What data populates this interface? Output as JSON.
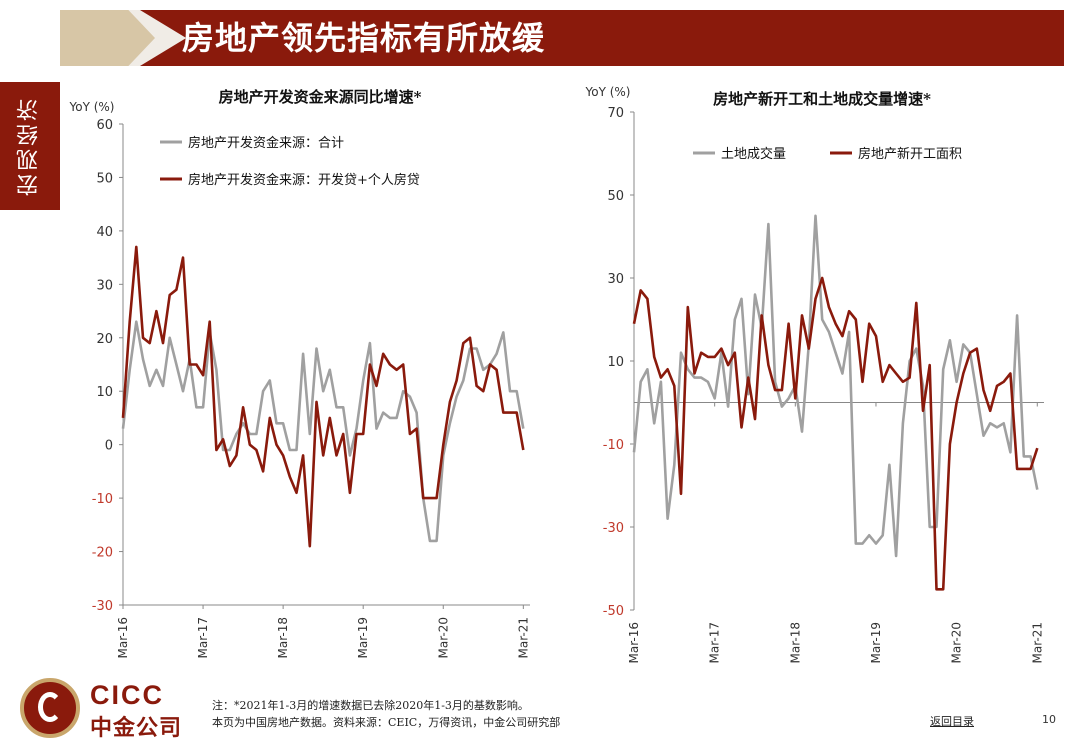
{
  "header": {
    "title": "房地产领先指标有所放缓"
  },
  "sidebar": {
    "section": "宏观经济"
  },
  "colors": {
    "brand_red": "#8a1a0c",
    "gray_line": "#a0a0a0",
    "gold": "#c9a66b",
    "neg_tick": "#c0392b"
  },
  "chart_data": [
    {
      "type": "line",
      "title": "房地产开发资金来源同比增速*",
      "ylabel": "YoY (%)",
      "ylim": [
        -30,
        60
      ],
      "yticks": [
        60,
        50,
        40,
        30,
        20,
        10,
        0,
        -10,
        -20,
        -30
      ],
      "xlim": [
        0,
        61
      ],
      "xticks": [
        "Mar-16",
        "Mar-17",
        "Mar-18",
        "Mar-19",
        "Mar-20",
        "Mar-21"
      ],
      "legend_position": "top-left",
      "series": [
        {
          "name": "房地产开发资金来源：合计",
          "color": "gray",
          "values": [
            3,
            14,
            23,
            16,
            11,
            14,
            11,
            20,
            15,
            10,
            16,
            7,
            7,
            21,
            14,
            -1,
            -1,
            2,
            4,
            2,
            2,
            10,
            12,
            4,
            4,
            -1,
            -1,
            17,
            2,
            18,
            10,
            14,
            7,
            7,
            -2,
            3,
            12,
            19,
            3,
            6,
            5,
            5,
            10,
            9,
            6,
            -10,
            -18,
            -18,
            -2,
            4,
            9,
            12,
            18,
            18,
            14,
            15,
            17,
            21,
            10,
            10,
            3
          ]
        },
        {
          "name": "房地产开发资金来源：开发贷+个人房贷",
          "color": "red",
          "values": [
            5,
            23,
            37,
            20,
            19,
            25,
            19,
            28,
            29,
            35,
            15,
            15,
            13,
            23,
            -1,
            1,
            -4,
            -2,
            7,
            0,
            -1,
            -5,
            5,
            0,
            -2,
            -6,
            -9,
            -2,
            -19,
            8,
            -2,
            5,
            -2,
            2,
            -9,
            2,
            2,
            15,
            11,
            17,
            15,
            14,
            15,
            2,
            3,
            -10,
            -10,
            -10,
            0,
            8,
            12,
            19,
            20,
            11,
            10,
            15,
            14,
            6,
            6,
            6,
            -1
          ]
        }
      ]
    },
    {
      "type": "line",
      "title": "房地产新开工和土地成交量增速*",
      "ylabel": "YoY (%)",
      "ylim": [
        -50,
        70
      ],
      "yticks": [
        70,
        50,
        30,
        10,
        -10,
        -30,
        -50
      ],
      "xlim": [
        0,
        61
      ],
      "xticks": [
        "Mar-16",
        "Mar-17",
        "Mar-18",
        "Mar-19",
        "Mar-20",
        "Mar-21"
      ],
      "legend_position": "top",
      "series": [
        {
          "name": "土地成交量",
          "color": "gray",
          "values": [
            -12,
            5,
            8,
            -5,
            5,
            -28,
            -15,
            12,
            8,
            6,
            6,
            5,
            1,
            12,
            -1,
            20,
            25,
            2,
            26,
            18,
            43,
            5,
            -1,
            1,
            4,
            -7,
            14,
            45,
            20,
            17,
            12,
            7,
            17,
            -34,
            -34,
            -32,
            -34,
            -32,
            -15,
            -37,
            -5,
            10,
            13,
            4,
            -30,
            -30,
            8,
            15,
            5,
            14,
            12,
            2,
            -8,
            -5,
            -6,
            -5,
            -12,
            21,
            -13,
            -13,
            -21
          ]
        },
        {
          "name": "房地产新开工面积",
          "color": "red",
          "values": [
            19,
            27,
            25,
            11,
            6,
            8,
            4,
            -22,
            23,
            7,
            12,
            11,
            11,
            13,
            9,
            12,
            -6,
            6,
            -4,
            21,
            9,
            3,
            3,
            19,
            1,
            21,
            13,
            25,
            30,
            23,
            19,
            16,
            22,
            20,
            5,
            19,
            16,
            5,
            9,
            7,
            5,
            6,
            24,
            -2,
            9,
            -45,
            -45,
            -10,
            0,
            7,
            12,
            13,
            3,
            -2,
            4,
            5,
            7,
            -16,
            -16,
            -16,
            -11
          ]
        }
      ]
    }
  ],
  "footer": {
    "logo_en": "CICC",
    "logo_cn": "中金公司",
    "note1": "注：*2021年1-3月的增速数据已去除2020年1-3月的基数影响。",
    "note2": "本页为中国房地产数据。资料来源：CEIC，万得资讯，中金公司研究部",
    "back_link": "返回目录",
    "page": "10"
  }
}
